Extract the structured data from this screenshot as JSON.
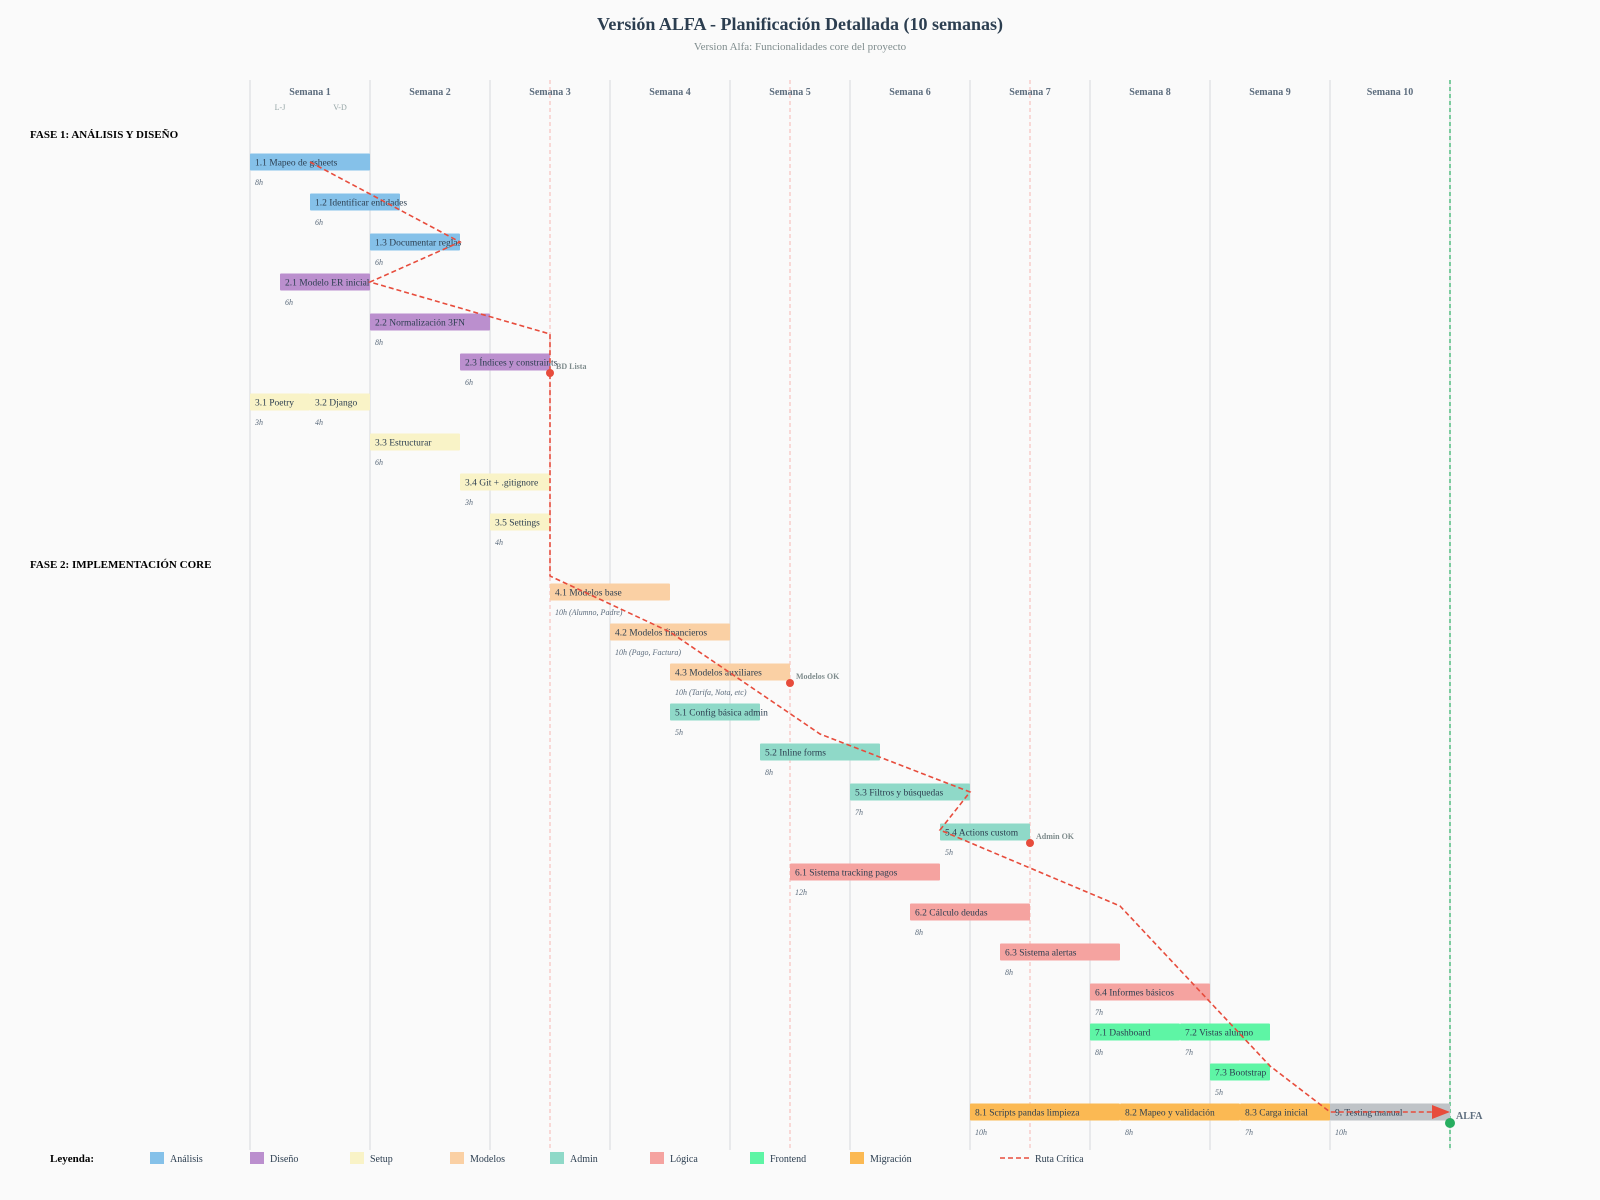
{
  "chart_data": {
    "type": "gantt",
    "title": "Versión ALFA - Planificación Detallada (10 semanas)",
    "subtitle": "Version Alfa: Funcionalidades core del proyecto",
    "weeks": [
      "Semana 1",
      "Semana 2",
      "Semana 3",
      "Semana 4",
      "Semana 5",
      "Semana 6",
      "Semana 7",
      "Semana 8",
      "Semana 9",
      "Semana 10"
    ],
    "week1_sublabels": [
      "L-J",
      "V-D"
    ],
    "phases": [
      {
        "label": "FASE 1: ANÁLISIS Y DISEÑO",
        "row": 0
      },
      {
        "label": "FASE 2: IMPLEMENTACIÓN CORE",
        "row": 10.75
      }
    ],
    "colors": {
      "analisis": "#85c1e9",
      "diseno": "#bb8fce",
      "setup": "#f9f3c7",
      "modelos": "#fad0a4",
      "admin": "#8fd9c8",
      "logica": "#f5a3a0",
      "frontend": "#5ef5a5",
      "migracion": "#fbb953",
      "testing": "#bfc3c7",
      "critical": "#e74c3c",
      "final": "#27ae60"
    },
    "tasks": [
      {
        "label": "1.1 Mapeo de gsheets",
        "hours": "8h",
        "start_week": 0,
        "end_week": 1,
        "row": 0.6,
        "category": "analisis"
      },
      {
        "label": "1.2 Identificar entidades",
        "hours": "6h",
        "start_week": 0.5,
        "end_week": 1.25,
        "row": 1.6,
        "category": "analisis"
      },
      {
        "label": "1.3 Documentar reglas",
        "hours": "6h",
        "start_week": 1,
        "end_week": 1.75,
        "row": 2.6,
        "category": "analisis"
      },
      {
        "label": "2.1 Modelo ER inicial",
        "hours": "6h",
        "start_week": 0.25,
        "end_week": 1,
        "row": 3.6,
        "category": "diseno"
      },
      {
        "label": "2.2 Normalización 3FN",
        "hours": "8h",
        "start_week": 1,
        "end_week": 2,
        "row": 4.6,
        "category": "diseno"
      },
      {
        "label": "2.3 Índices y constraints",
        "hours": "6h",
        "start_week": 1.75,
        "end_week": 2.5,
        "row": 5.6,
        "category": "diseno"
      },
      {
        "label": "3.1 Poetry",
        "hours": "3h",
        "start_week": 0,
        "end_week": 0.5,
        "row": 6.6,
        "category": "setup"
      },
      {
        "label": "3.2 Django",
        "hours": "4h",
        "start_week": 0.5,
        "end_week": 1,
        "row": 6.6,
        "category": "setup"
      },
      {
        "label": "3.3 Estructurar",
        "hours": "6h",
        "start_week": 1,
        "end_week": 1.75,
        "row": 7.6,
        "category": "setup"
      },
      {
        "label": "3.4 Git + .gitignore",
        "hours": "3h",
        "start_week": 1.75,
        "end_week": 2.5,
        "row": 8.6,
        "category": "setup"
      },
      {
        "label": "3.5 Settings",
        "hours": "4h",
        "start_week": 2,
        "end_week": 2.5,
        "row": 9.6,
        "category": "setup"
      },
      {
        "label": "4.1 Modelos base",
        "hours": "10h (Alumno, Padre)",
        "start_week": 2.5,
        "end_week": 3.5,
        "row": 11.35,
        "category": "modelos"
      },
      {
        "label": "4.2 Modelos financieros",
        "hours": "10h (Pago, Factura)",
        "start_week": 3,
        "end_week": 4,
        "row": 12.35,
        "category": "modelos"
      },
      {
        "label": "4.3 Modelos auxiliares",
        "hours": "10h (Tarifa, Nota, etc)",
        "start_week": 3.5,
        "end_week": 4.5,
        "row": 13.35,
        "category": "modelos"
      },
      {
        "label": "5.1 Config básica admin",
        "hours": "5h",
        "start_week": 3.5,
        "end_week": 4.25,
        "row": 14.35,
        "category": "admin"
      },
      {
        "label": "5.2 Inline forms",
        "hours": "8h",
        "start_week": 4.25,
        "end_week": 5.25,
        "row": 15.35,
        "category": "admin"
      },
      {
        "label": "5.3 Filtros y búsquedas",
        "hours": "7h",
        "start_week": 5,
        "end_week": 6,
        "row": 16.35,
        "category": "admin"
      },
      {
        "label": "5.4 Actions custom",
        "hours": "5h",
        "start_week": 5.75,
        "end_week": 6.5,
        "row": 17.35,
        "category": "admin"
      },
      {
        "label": "6.1 Sistema tracking pagos",
        "hours": "12h",
        "start_week": 4.5,
        "end_week": 5.75,
        "row": 18.35,
        "category": "logica"
      },
      {
        "label": "6.2 Cálculo deudas",
        "hours": "8h",
        "start_week": 5.5,
        "end_week": 6.5,
        "row": 19.35,
        "category": "logica"
      },
      {
        "label": "6.3 Sistema alertas",
        "hours": "8h",
        "start_week": 6.25,
        "end_week": 7.25,
        "row": 20.35,
        "category": "logica"
      },
      {
        "label": "6.4 Informes básicos",
        "hours": "7h",
        "start_week": 7,
        "end_week": 8,
        "row": 21.35,
        "category": "logica"
      },
      {
        "label": "7.1 Dashboard",
        "hours": "8h",
        "start_week": 7,
        "end_week": 7.75,
        "row": 22.35,
        "category": "frontend"
      },
      {
        "label": "7.2 Vistas alumno",
        "hours": "7h",
        "start_week": 7.75,
        "end_week": 8.5,
        "row": 22.35,
        "category": "frontend"
      },
      {
        "label": "7.3 Bootstrap",
        "hours": "5h",
        "start_week": 8,
        "end_week": 8.5,
        "row": 23.35,
        "category": "frontend"
      },
      {
        "label": "8.1 Scripts pandas limpieza",
        "hours": "10h",
        "start_week": 6,
        "end_week": 7.25,
        "row": 24.35,
        "category": "migracion"
      },
      {
        "label": "8.2 Mapeo y validación",
        "hours": "8h",
        "start_week": 7.25,
        "end_week": 8.25,
        "row": 24.35,
        "category": "migracion"
      },
      {
        "label": "8.3 Carga inicial",
        "hours": "7h",
        "start_week": 8.25,
        "end_week": 9,
        "row": 24.35,
        "category": "migracion"
      },
      {
        "label": "9. Testing manual",
        "hours": "10h",
        "start_week": 9,
        "end_week": 10,
        "row": 24.35,
        "category": "testing"
      }
    ],
    "milestones": [
      {
        "label": "BD Lista",
        "week": 2.5,
        "row": 5.6
      },
      {
        "label": "Modelos OK",
        "week": 4.5,
        "row": 13.35
      },
      {
        "label": "Admin OK",
        "week": 6.5,
        "row": 17.35
      },
      {
        "label": "ALFA",
        "week": 10,
        "row": 24.35
      }
    ],
    "milestone_guides": [
      2.5,
      4.5,
      6.5
    ],
    "critical_path": [
      [
        0.5,
        0.6
      ],
      [
        1.75,
        2.6
      ],
      [
        1,
        3.6
      ],
      [
        2.5,
        4.9
      ],
      [
        2.5,
        10.95
      ],
      [
        3.5,
        12.35
      ],
      [
        4.75,
        14.9
      ],
      [
        6,
        16.35
      ],
      [
        5.75,
        17.3
      ],
      [
        7.25,
        19.2
      ],
      [
        8.5,
        23.2
      ],
      [
        9,
        24.35
      ],
      [
        10,
        24.35
      ]
    ],
    "legend": [
      {
        "label": "Análisis",
        "category": "analisis"
      },
      {
        "label": "Diseño",
        "category": "diseno"
      },
      {
        "label": "Setup",
        "category": "setup"
      },
      {
        "label": "Modelos",
        "category": "modelos"
      },
      {
        "label": "Admin",
        "category": "admin"
      },
      {
        "label": "Lógica",
        "category": "logica"
      },
      {
        "label": "Frontend",
        "category": "frontend"
      },
      {
        "label": "Migración",
        "category": "migracion"
      },
      {
        "label": "Ruta Crítica",
        "category": "critical",
        "line": true
      }
    ],
    "legend_title": "Leyenda:"
  }
}
